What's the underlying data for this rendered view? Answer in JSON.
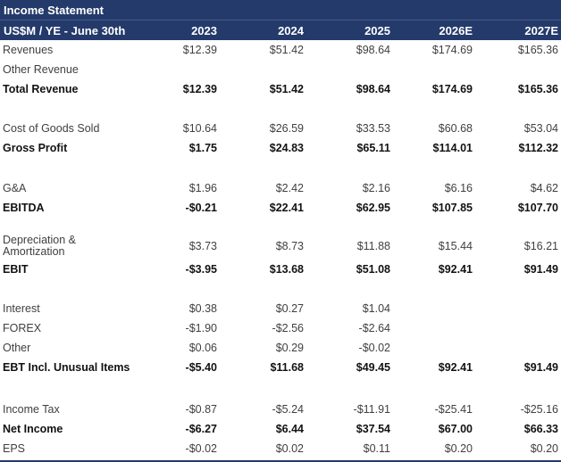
{
  "header": {
    "title": "Income Statement",
    "subtitle": "US$M / YE - June 30th",
    "columns": [
      "2023",
      "2024",
      "2025",
      "2026E",
      "2027E"
    ]
  },
  "colors": {
    "header_bg": "#243A6B",
    "header_text": "#FFFFFF",
    "body_text": "#3F3F3F",
    "bold_text": "#121212",
    "bottom_border": "#243A6B"
  },
  "table": {
    "rows": [
      {
        "type": "data",
        "label": "Revenues",
        "bold": false,
        "values": [
          "$12.39",
          "$51.42",
          "$98.64",
          "$174.69",
          "$165.36"
        ]
      },
      {
        "type": "data",
        "label": "Other Revenue",
        "bold": false,
        "values": [
          "",
          "",
          "",
          "",
          ""
        ]
      },
      {
        "type": "data",
        "label": "Total Revenue",
        "bold": true,
        "values": [
          "$12.39",
          "$51.42",
          "$98.64",
          "$174.69",
          "$165.36"
        ]
      },
      {
        "type": "spacer"
      },
      {
        "type": "data",
        "label": "Cost of Goods Sold",
        "bold": false,
        "values": [
          "$10.64",
          "$26.59",
          "$33.53",
          "$60.68",
          "$53.04"
        ]
      },
      {
        "type": "data",
        "label": "Gross Profit",
        "bold": true,
        "values": [
          "$1.75",
          "$24.83",
          "$65.11",
          "$114.01",
          "$112.32"
        ]
      },
      {
        "type": "spacer"
      },
      {
        "type": "data",
        "label": "G&A",
        "bold": false,
        "values": [
          "$1.96",
          "$2.42",
          "$2.16",
          "$6.16",
          "$4.62"
        ]
      },
      {
        "type": "data",
        "label": "EBITDA",
        "bold": true,
        "values": [
          "-$0.21",
          "$22.41",
          "$62.95",
          "$107.85",
          "$107.70"
        ]
      },
      {
        "type": "spacer"
      },
      {
        "type": "data",
        "label": "Depreciation & Amortization",
        "bold": false,
        "wrap": true,
        "values": [
          "$3.73",
          "$8.73",
          "$11.88",
          "$15.44",
          "$16.21"
        ]
      },
      {
        "type": "data",
        "label": "EBIT",
        "bold": true,
        "values": [
          "-$3.95",
          "$13.68",
          "$51.08",
          "$92.41",
          "$91.49"
        ]
      },
      {
        "type": "spacer"
      },
      {
        "type": "data",
        "label": "Interest",
        "bold": false,
        "values": [
          "$0.38",
          "$0.27",
          "$1.04",
          "",
          ""
        ]
      },
      {
        "type": "data",
        "label": "FOREX",
        "bold": false,
        "values": [
          "-$1.90",
          "-$2.56",
          "-$2.64",
          "",
          ""
        ]
      },
      {
        "type": "data",
        "label": "Other",
        "bold": false,
        "values": [
          "$0.06",
          "$0.29",
          "-$0.02",
          "",
          ""
        ]
      },
      {
        "type": "data",
        "label": "EBT Incl. Unusual Items",
        "bold": true,
        "values": [
          "-$5.40",
          "$11.68",
          "$49.45",
          "$92.41",
          "$91.49"
        ]
      },
      {
        "type": "spacer"
      },
      {
        "type": "data",
        "label": "Income Tax",
        "bold": false,
        "values": [
          "-$0.87",
          "-$5.24",
          "-$11.91",
          "-$25.41",
          "-$25.16"
        ]
      },
      {
        "type": "data",
        "label": "Net Income",
        "bold": true,
        "values": [
          "-$6.27",
          "$6.44",
          "$37.54",
          "$67.00",
          "$66.33"
        ]
      },
      {
        "type": "data",
        "label": "EPS",
        "bold": false,
        "values": [
          "-$0.02",
          "$0.02",
          "$0.11",
          "$0.20",
          "$0.20"
        ]
      }
    ]
  },
  "chart_data": {
    "type": "table",
    "title": "Income Statement",
    "unit_label": "US$M / YE - June 30th",
    "columns": [
      "2023",
      "2024",
      "2025",
      "2026E",
      "2027E"
    ],
    "rows": [
      {
        "label": "Revenues",
        "values": [
          12.39,
          51.42,
          98.64,
          174.69,
          165.36
        ]
      },
      {
        "label": "Other Revenue",
        "values": [
          null,
          null,
          null,
          null,
          null
        ]
      },
      {
        "label": "Total Revenue",
        "values": [
          12.39,
          51.42,
          98.64,
          174.69,
          165.36
        ]
      },
      {
        "label": "Cost of Goods Sold",
        "values": [
          10.64,
          26.59,
          33.53,
          60.68,
          53.04
        ]
      },
      {
        "label": "Gross Profit",
        "values": [
          1.75,
          24.83,
          65.11,
          114.01,
          112.32
        ]
      },
      {
        "label": "G&A",
        "values": [
          1.96,
          2.42,
          2.16,
          6.16,
          4.62
        ]
      },
      {
        "label": "EBITDA",
        "values": [
          -0.21,
          22.41,
          62.95,
          107.85,
          107.7
        ]
      },
      {
        "label": "Depreciation & Amortization",
        "values": [
          3.73,
          8.73,
          11.88,
          15.44,
          16.21
        ]
      },
      {
        "label": "EBIT",
        "values": [
          -3.95,
          13.68,
          51.08,
          92.41,
          91.49
        ]
      },
      {
        "label": "Interest",
        "values": [
          0.38,
          0.27,
          1.04,
          null,
          null
        ]
      },
      {
        "label": "FOREX",
        "values": [
          -1.9,
          -2.56,
          -2.64,
          null,
          null
        ]
      },
      {
        "label": "Other",
        "values": [
          0.06,
          0.29,
          -0.02,
          null,
          null
        ]
      },
      {
        "label": "EBT Incl. Unusual Items",
        "values": [
          -5.4,
          11.68,
          49.45,
          92.41,
          91.49
        ]
      },
      {
        "label": "Income Tax",
        "values": [
          -0.87,
          -5.24,
          -11.91,
          -25.41,
          -25.16
        ]
      },
      {
        "label": "Net Income",
        "values": [
          -6.27,
          6.44,
          37.54,
          67.0,
          66.33
        ]
      },
      {
        "label": "EPS",
        "values": [
          -0.02,
          0.02,
          0.11,
          0.2,
          0.2
        ]
      }
    ]
  }
}
